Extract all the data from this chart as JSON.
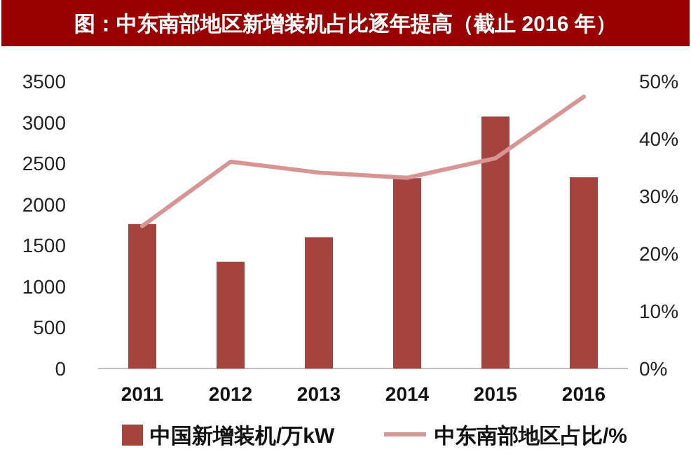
{
  "chart_data": {
    "type": "bar",
    "title": "图：中东南部地区新增装机占比逐年提高（截止 2016 年）",
    "categories": [
      "2011",
      "2012",
      "2013",
      "2014",
      "2015",
      "2016"
    ],
    "series": [
      {
        "name": "中国新增装机/万kW",
        "color": "#a5443f",
        "values": [
          1760,
          1300,
          1600,
          2320,
          3070,
          2330
        ]
      },
      {
        "name": "中东南部地区占比/%",
        "type": "line",
        "axis": "y2",
        "color": "#d99594",
        "values": [
          24.8,
          36.0,
          34.1,
          33.2,
          36.6,
          47.3
        ]
      }
    ],
    "ylim": [
      0,
      3500
    ],
    "yticks": [
      0,
      500,
      1000,
      1500,
      2000,
      2500,
      3000,
      3500
    ],
    "y2lim": [
      0,
      50
    ],
    "y2ticks": [
      {
        "value": 0,
        "label": "0%"
      },
      {
        "value": 10,
        "label": "10%"
      },
      {
        "value": 20,
        "label": "20%"
      },
      {
        "value": 30,
        "label": "30%"
      },
      {
        "value": 40,
        "label": "40%"
      },
      {
        "value": 50,
        "label": "50%"
      }
    ],
    "grid": false,
    "legend": "bottom",
    "marker": "none",
    "line_style": "solid"
  }
}
